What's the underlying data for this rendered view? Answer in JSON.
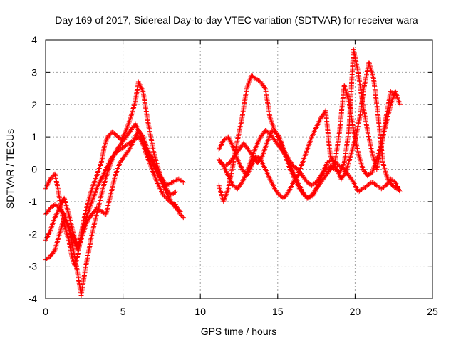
{
  "chart_data": {
    "type": "scatter",
    "title": "Day 169 of 2017, Sidereal Day-to-day VTEC variation (SDTVAR) for receiver wara",
    "xlabel": "GPS time / hours",
    "ylabel": "SDTVAR / TECUs",
    "xlim": [
      0,
      25
    ],
    "ylim": [
      -4,
      4
    ],
    "xticks": [
      "0",
      "5",
      "10",
      "15",
      "20",
      "25"
    ],
    "yticks": [
      "-4",
      "-3",
      "-2",
      "-1",
      "0",
      "1",
      "2",
      "3",
      "4"
    ],
    "grid": true,
    "marker": "+",
    "color": "#ff0000",
    "series": [
      {
        "x": [
          0.0,
          0.3,
          0.6,
          0.8,
          1.0,
          1.2,
          1.5,
          1.7,
          1.9,
          2.1,
          2.3,
          2.5,
          2.7,
          3.0,
          3.3,
          3.6,
          3.8,
          4.0,
          4.3,
          4.6,
          4.9,
          5.2,
          5.5,
          5.8,
          6.0,
          6.3,
          6.6,
          7.0,
          7.4,
          7.8,
          8.2,
          8.6,
          8.9
        ],
        "y": [
          -0.6,
          -0.3,
          -0.15,
          -0.6,
          -1.2,
          -1.7,
          -2.2,
          -2.7,
          -3.0,
          -2.6,
          -2.0,
          -1.5,
          -1.1,
          -0.6,
          -0.2,
          0.2,
          0.7,
          1.0,
          1.15,
          1.05,
          0.9,
          1.2,
          1.6,
          2.1,
          2.7,
          2.4,
          1.5,
          0.5,
          -0.2,
          -0.5,
          -0.4,
          -0.3,
          -0.4
        ]
      },
      {
        "x": [
          0.0,
          0.3,
          0.6,
          0.9,
          1.2,
          1.5,
          1.8,
          2.1,
          2.3,
          2.6,
          3.0,
          3.4,
          3.7,
          4.0,
          4.3,
          4.6,
          4.9,
          5.2,
          5.5,
          5.8,
          6.1,
          6.4,
          6.8,
          7.2,
          7.6,
          8.0,
          8.4,
          8.7,
          8.9
        ],
        "y": [
          -2.8,
          -2.7,
          -2.5,
          -2.0,
          -1.5,
          -1.8,
          -2.5,
          -3.3,
          -3.9,
          -3.0,
          -2.0,
          -1.2,
          -0.6,
          -0.1,
          0.3,
          0.6,
          0.8,
          1.0,
          1.2,
          1.4,
          1.1,
          0.6,
          0.1,
          -0.4,
          -0.8,
          -1.0,
          -1.1,
          -1.4,
          -1.5
        ]
      },
      {
        "x": [
          0.0,
          0.3,
          0.6,
          0.9,
          1.2,
          1.5,
          1.8,
          2.1,
          2.4,
          2.7,
          3.0,
          3.3,
          3.6,
          3.9,
          4.2,
          4.5,
          4.8,
          5.1,
          5.4,
          5.7,
          6.0,
          6.3,
          6.6,
          6.9,
          7.2,
          7.5,
          7.8,
          8.1,
          8.4
        ],
        "y": [
          -1.4,
          -1.2,
          -1.1,
          -1.2,
          -1.4,
          -1.8,
          -2.2,
          -2.5,
          -2.0,
          -1.6,
          -1.4,
          -1.2,
          -1.3,
          -1.4,
          -0.8,
          -0.2,
          0.2,
          0.4,
          0.6,
          0.9,
          1.2,
          1.0,
          0.6,
          0.3,
          0.0,
          -0.3,
          -0.6,
          -0.8,
          -0.7
        ]
      },
      {
        "x": [
          0.0,
          0.3,
          0.6,
          0.9,
          1.2,
          1.5,
          1.8,
          2.1,
          2.4,
          2.7,
          3.0,
          3.3,
          3.6,
          3.9,
          4.2,
          4.5,
          4.8,
          5.1,
          5.4,
          5.7,
          6.0,
          6.3,
          6.6,
          6.9,
          7.2,
          7.5,
          7.8,
          8.1,
          8.4,
          8.7
        ],
        "y": [
          -2.2,
          -1.9,
          -1.5,
          -1.2,
          -0.9,
          -1.4,
          -2.0,
          -2.4,
          -1.9,
          -1.4,
          -1.0,
          -0.6,
          -0.3,
          0.0,
          0.3,
          0.5,
          0.6,
          0.7,
          0.8,
          0.9,
          1.0,
          0.8,
          0.5,
          0.2,
          -0.1,
          -0.4,
          -0.7,
          -1.0,
          -1.2,
          -1.3
        ]
      },
      {
        "x": [
          11.2,
          11.5,
          11.8,
          12.1,
          12.4,
          12.7,
          13.0,
          13.3,
          13.6,
          13.9,
          14.2,
          14.5,
          14.8,
          15.1,
          15.4,
          15.7,
          16.0,
          16.3,
          16.6,
          16.9,
          17.2,
          17.5,
          17.8,
          18.1,
          18.4,
          18.7,
          19.0,
          19.3,
          19.6,
          19.9,
          20.2,
          20.5,
          20.8,
          21.1,
          21.4,
          21.7,
          22.0,
          22.3,
          22.6,
          22.9
        ],
        "y": [
          -0.5,
          -1.0,
          -0.6,
          0.1,
          0.9,
          1.6,
          2.5,
          2.9,
          2.8,
          2.7,
          2.5,
          1.6,
          1.2,
          1.0,
          0.6,
          0.3,
          -0.1,
          -0.4,
          -0.7,
          -0.9,
          -0.8,
          -0.6,
          -0.4,
          -0.2,
          0.0,
          0.2,
          0.1,
          0.0,
          -0.2,
          -0.4,
          -0.7,
          -0.6,
          -0.5,
          -0.4,
          -0.5,
          -0.6,
          -0.5,
          -0.3,
          -0.4,
          -0.7
        ]
      },
      {
        "x": [
          11.2,
          11.5,
          11.8,
          12.1,
          12.4,
          12.7,
          13.0,
          13.3,
          13.6,
          13.9,
          14.2,
          14.5,
          14.8,
          15.1,
          15.4,
          15.7,
          16.0,
          16.3,
          16.6,
          16.9,
          17.2,
          17.5,
          17.8,
          18.1,
          18.4,
          18.7,
          19.0,
          19.3,
          19.6,
          19.9,
          20.2,
          20.5,
          20.8,
          21.1,
          21.4,
          21.7,
          22.0,
          22.3,
          22.6,
          22.9
        ],
        "y": [
          0.6,
          0.9,
          1.0,
          0.7,
          0.3,
          0.0,
          -0.2,
          0.1,
          0.4,
          0.3,
          0.0,
          -0.3,
          -0.6,
          -0.8,
          -0.9,
          -0.7,
          -0.4,
          -0.2,
          0.2,
          0.6,
          1.0,
          1.3,
          1.6,
          1.8,
          0.4,
          0.2,
          1.2,
          2.6,
          2.1,
          1.2,
          0.5,
          0.0,
          -0.2,
          -0.1,
          0.3,
          0.8,
          1.4,
          2.0,
          2.4,
          2.0
        ]
      },
      {
        "x": [
          11.2,
          11.5,
          11.8,
          12.1,
          12.4,
          12.7,
          13.0,
          13.3,
          13.6,
          13.9,
          14.2,
          14.5,
          14.8,
          15.1,
          15.4,
          15.7,
          16.0,
          16.3,
          16.6,
          16.9,
          17.2,
          17.5,
          17.8,
          18.1,
          18.4,
          18.7,
          19.0,
          19.3,
          19.6,
          19.9,
          20.2,
          20.5,
          20.8,
          21.1,
          21.4,
          21.7,
          22.0,
          22.3,
          22.6
        ],
        "y": [
          0.3,
          0.1,
          -0.2,
          -0.5,
          -0.6,
          -0.4,
          -0.1,
          0.3,
          0.7,
          1.0,
          1.2,
          1.1,
          0.9,
          0.7,
          0.5,
          0.3,
          0.1,
          0.0,
          -0.2,
          -0.4,
          -0.5,
          -0.4,
          -0.2,
          0.0,
          0.1,
          0.0,
          -0.1,
          0.2,
          1.2,
          3.7,
          3.0,
          2.0,
          1.2,
          0.5,
          0.0,
          0.7,
          1.6,
          2.4,
          2.3
        ]
      },
      {
        "x": [
          11.3,
          11.6,
          11.9,
          12.2,
          12.5,
          12.8,
          13.1,
          13.4,
          13.7,
          14.0,
          14.3,
          14.6,
          14.9,
          15.2,
          15.5,
          15.8,
          16.1,
          16.4,
          16.7,
          17.0,
          17.3,
          17.6,
          17.9,
          18.2,
          18.5,
          18.8,
          19.1,
          19.4,
          19.7,
          20.0,
          20.3,
          20.6,
          20.9,
          21.2,
          21.5,
          21.8,
          22.1,
          22.4,
          22.7
        ],
        "y": [
          0.2,
          0.1,
          0.2,
          0.4,
          0.6,
          0.8,
          0.6,
          0.4,
          0.2,
          0.4,
          0.8,
          1.2,
          1.1,
          0.8,
          0.4,
          0.0,
          -0.3,
          -0.6,
          -0.8,
          -0.9,
          -0.8,
          -0.5,
          -0.1,
          0.2,
          0.3,
          0.0,
          -0.3,
          -0.1,
          0.4,
          0.9,
          1.6,
          2.6,
          3.3,
          2.8,
          1.6,
          0.2,
          -0.3,
          -0.5,
          -0.6
        ]
      }
    ]
  }
}
